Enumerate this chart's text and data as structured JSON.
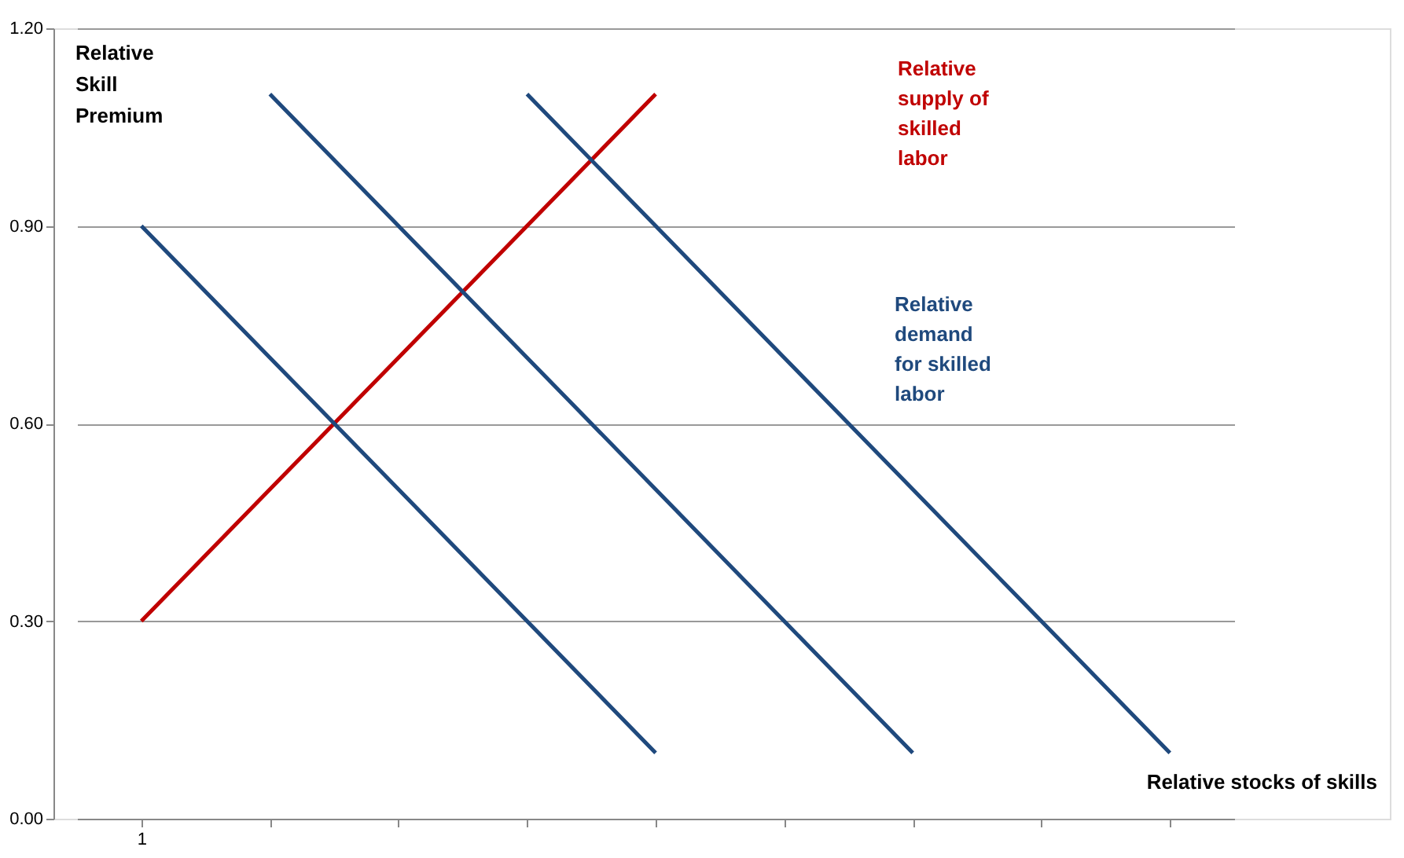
{
  "chart_data": {
    "type": "line",
    "xlabel": "Relative stocks of skills",
    "ylabel": "Relative Skill Premium",
    "categories": [
      "1",
      null,
      null,
      null,
      null,
      null,
      null,
      null,
      null
    ],
    "series": [
      {
        "name": "Relative\nsupply of\nskilled\nlabor",
        "color": "#c00000",
        "values": [
          0.3,
          0.5,
          0.7,
          0.9,
          1.1,
          null,
          null,
          null,
          null
        ]
      },
      {
        "color": "#1f497d",
        "values": [
          0.9,
          0.7,
          0.5,
          0.3,
          0.1,
          null,
          null,
          null,
          null
        ]
      },
      {
        "color": "#1f497d",
        "values": [
          null,
          1.1,
          0.9,
          0.7,
          0.5,
          0.3,
          0.1,
          null,
          null
        ]
      },
      {
        "name": "Relative\ndemand\nfor skilled\nlabor",
        "color": "#1f497d",
        "values": [
          null,
          null,
          null,
          1.1,
          0.9,
          0.7,
          0.5,
          0.3,
          0.1
        ]
      }
    ],
    "ylim": [
      0,
      1.2
    ],
    "yticks": [
      {
        "value": 0,
        "label": "0.00"
      },
      {
        "value": 0.3,
        "label": "0.30"
      },
      {
        "value": 0.6,
        "label": "0.60"
      },
      {
        "value": 0.9,
        "label": "0.90"
      },
      {
        "value": 1.2,
        "label": "1.20"
      }
    ],
    "grid": "y",
    "marker": "none",
    "line_style": "solid"
  }
}
